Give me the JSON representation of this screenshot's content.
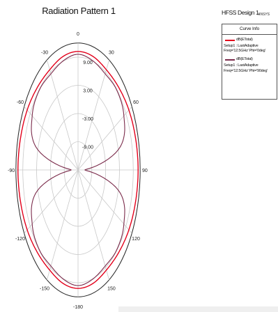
{
  "chart_data": {
    "type": "polar",
    "title": "Radiation Pattern 1",
    "radial_unit": "dB",
    "radial_range": [
      -15,
      12
    ],
    "radial_ticks": [
      {
        "value": 9,
        "label": "9.00"
      },
      {
        "value": 3,
        "label": "3.00"
      },
      {
        "value": -3,
        "label": "-3.00"
      },
      {
        "value": -9,
        "label": "-9.00"
      }
    ],
    "angle_ticks": [
      {
        "deg": 0,
        "label": "0"
      },
      {
        "deg": 30,
        "label": "30"
      },
      {
        "deg": 60,
        "label": "60"
      },
      {
        "deg": 90,
        "label": "90"
      },
      {
        "deg": 120,
        "label": "120"
      },
      {
        "deg": 150,
        "label": "150"
      },
      {
        "deg": 180,
        "label": "-180"
      },
      {
        "deg": -150,
        "label": "-150"
      },
      {
        "deg": -120,
        "label": "-120"
      },
      {
        "deg": -90,
        "label": "-90"
      },
      {
        "deg": -60,
        "label": "-60"
      },
      {
        "deg": -30,
        "label": "-30"
      }
    ],
    "series": [
      {
        "name": "dB(ETotal)",
        "setup": "Setup1 : LastAdaptive",
        "params": "Freq='12.5GHz' Phi='0deg'",
        "color": "#e3001b",
        "theta": [
          -180,
          -165,
          -150,
          -135,
          -120,
          -105,
          -90,
          -75,
          -60,
          -45,
          -30,
          -15,
          0,
          15,
          30,
          45,
          60,
          75,
          90,
          105,
          120,
          135,
          150,
          165,
          180
        ],
        "values": [
          10.2,
          10.0,
          9.6,
          9.9,
          10.5,
          10.9,
          11.1,
          10.9,
          10.5,
          9.9,
          9.6,
          10.0,
          10.2,
          10.0,
          9.6,
          9.9,
          10.5,
          10.9,
          11.1,
          10.9,
          10.5,
          9.9,
          9.6,
          10.0,
          10.2
        ]
      },
      {
        "name": "dB(ETotal)",
        "setup": "Setup1 : LastAdaptive",
        "params": "Freq='12.5GHz' Phi='90deg'",
        "color": "#7a2a4a",
        "theta": [
          -180,
          -165,
          -150,
          -135,
          -120,
          -105,
          -90,
          -75,
          -60,
          -45,
          -30,
          -15,
          0,
          15,
          30,
          45,
          60,
          75,
          90,
          105,
          120,
          135,
          150,
          165,
          180
        ],
        "values": [
          9.6,
          9.1,
          8.6,
          8.9,
          8.0,
          4.0,
          -12.0,
          4.0,
          8.0,
          8.9,
          8.6,
          9.1,
          9.6,
          9.1,
          8.6,
          8.9,
          8.0,
          4.0,
          -12.0,
          4.0,
          8.0,
          8.9,
          8.6,
          9.1,
          9.6
        ]
      }
    ],
    "grid": true
  },
  "header": {
    "design_name": "HFSS Design 1",
    "ansoft_mark": "ANSYS"
  },
  "legend": {
    "title": "Curve Info"
  }
}
